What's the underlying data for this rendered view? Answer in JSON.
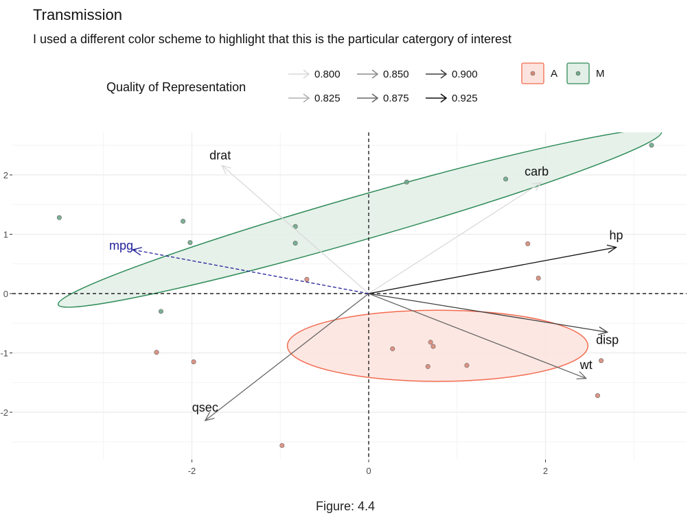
{
  "chart_data": {
    "type": "scatter",
    "title": "Transmission",
    "subtitle": "I used a different color scheme to highlight that this is the particular catergory of interest",
    "xlim": [
      -3.6,
      3.6
    ],
    "ylim": [
      -2.8,
      2.65
    ],
    "x_ticks": [
      -2,
      0,
      2
    ],
    "y_ticks": [
      -2,
      -1,
      0,
      1,
      2
    ],
    "grid": true,
    "legend_position": "top",
    "quality_legend": {
      "title": "Quality of Representation",
      "entries": [
        "0.800",
        "0.825",
        "0.850",
        "0.875",
        "0.900",
        "0.925"
      ],
      "colors": [
        "#d9d9d9",
        "#b0b0b0",
        "#8c8c8c",
        "#666666",
        "#3d3d3d",
        "#111111"
      ]
    },
    "group_legend": [
      {
        "key": "A",
        "label": "A",
        "color": "#f26a4f",
        "fill": "#fde3dd",
        "point": "#d9897a"
      },
      {
        "key": "M",
        "label": "M",
        "color": "#2e8b57",
        "fill": "#e2efe6",
        "point": "#6ea989"
      }
    ],
    "points": [
      {
        "group": "M",
        "x": -3.5,
        "y": 1.28
      },
      {
        "group": "M",
        "x": -2.1,
        "y": 1.22
      },
      {
        "group": "M",
        "x": -2.02,
        "y": 0.86
      },
      {
        "group": "M",
        "x": -2.35,
        "y": -0.3
      },
      {
        "group": "M",
        "x": -0.83,
        "y": 1.13
      },
      {
        "group": "M",
        "x": -0.83,
        "y": 0.85
      },
      {
        "group": "M",
        "x": 0.43,
        "y": 1.88
      },
      {
        "group": "M",
        "x": 1.55,
        "y": 1.93
      },
      {
        "group": "M",
        "x": 3.2,
        "y": 2.5
      },
      {
        "group": "A",
        "x": -2.4,
        "y": -0.99
      },
      {
        "group": "A",
        "x": -1.98,
        "y": -1.15
      },
      {
        "group": "A",
        "x": -0.98,
        "y": -2.56
      },
      {
        "group": "A",
        "x": -0.7,
        "y": 0.24
      },
      {
        "group": "A",
        "x": 0.27,
        "y": -0.93
      },
      {
        "group": "A",
        "x": 0.7,
        "y": -0.82
      },
      {
        "group": "A",
        "x": 0.73,
        "y": -0.89
      },
      {
        "group": "A",
        "x": 0.67,
        "y": -1.23
      },
      {
        "group": "A",
        "x": 1.11,
        "y": -1.21
      },
      {
        "group": "A",
        "x": 1.8,
        "y": 0.84
      },
      {
        "group": "A",
        "x": 1.92,
        "y": 0.26
      },
      {
        "group": "A",
        "x": 2.63,
        "y": -1.13
      },
      {
        "group": "A",
        "x": 2.59,
        "y": -1.72
      }
    ],
    "ellipses": [
      {
        "group": "M",
        "cx": -0.1,
        "cy": 1.27,
        "rx": 3.55,
        "ry": 0.37,
        "angle_deg": 16
      },
      {
        "group": "A",
        "cx": 0.78,
        "cy": -0.88,
        "rx": 1.7,
        "ry": 0.6,
        "angle_deg": 0
      }
    ],
    "vectors": [
      {
        "name": "drat",
        "x": -1.66,
        "y": 2.16,
        "quality": "0.800",
        "label_x": -1.68,
        "label_y": 2.33
      },
      {
        "name": "carb",
        "x": 1.95,
        "y": 1.87,
        "quality": "0.800",
        "label_x": 1.9,
        "label_y": 2.06
      },
      {
        "name": "hp",
        "x": 2.8,
        "y": 0.78,
        "quality": "0.925",
        "label_x": 2.8,
        "label_y": 0.98
      },
      {
        "name": "disp",
        "x": 2.7,
        "y": -0.65,
        "quality": "0.900",
        "label_x": 2.7,
        "label_y": -0.78
      },
      {
        "name": "wt",
        "x": 2.46,
        "y": -1.43,
        "quality": "0.875",
        "label_x": 2.46,
        "label_y": -1.2
      },
      {
        "name": "qsec",
        "x": -1.85,
        "y": -2.14,
        "quality": "0.875",
        "label_x": -1.85,
        "label_y": -1.92
      },
      {
        "name": "mpg",
        "x": -2.67,
        "y": 0.74,
        "quality": "highlight",
        "label_x": -2.8,
        "label_y": 0.81,
        "color": "#1f1f99",
        "dashed": true
      }
    ],
    "caption": "Figure: 4.4"
  }
}
